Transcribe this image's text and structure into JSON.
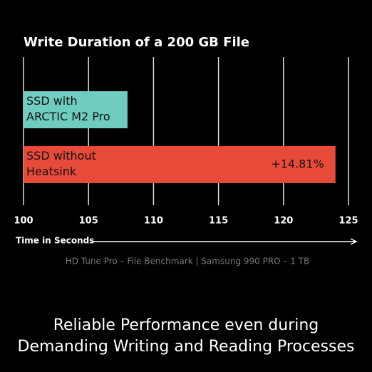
{
  "chart_data": {
    "type": "bar",
    "orientation": "horizontal",
    "title": "Write Duration of a 200 GB File",
    "categories": [
      "SSD with\nARCTIC M2 Pro",
      "SSD without\nHeatsink"
    ],
    "values": [
      108,
      124
    ],
    "colors": [
      "#6fcdbf",
      "#e84a3a"
    ],
    "annotation": "+14.81%",
    "xlim": [
      100,
      125
    ],
    "xticks": [
      100,
      105,
      110,
      115,
      120,
      125
    ],
    "xlabel": "Time in Seconds",
    "source": "HD Tune Pro – File Benchmark | Samsung 990 PRO – 1 TB",
    "grid": true
  },
  "footer": "Reliable Performance even during\nDemanding Writing and Reading Processes"
}
